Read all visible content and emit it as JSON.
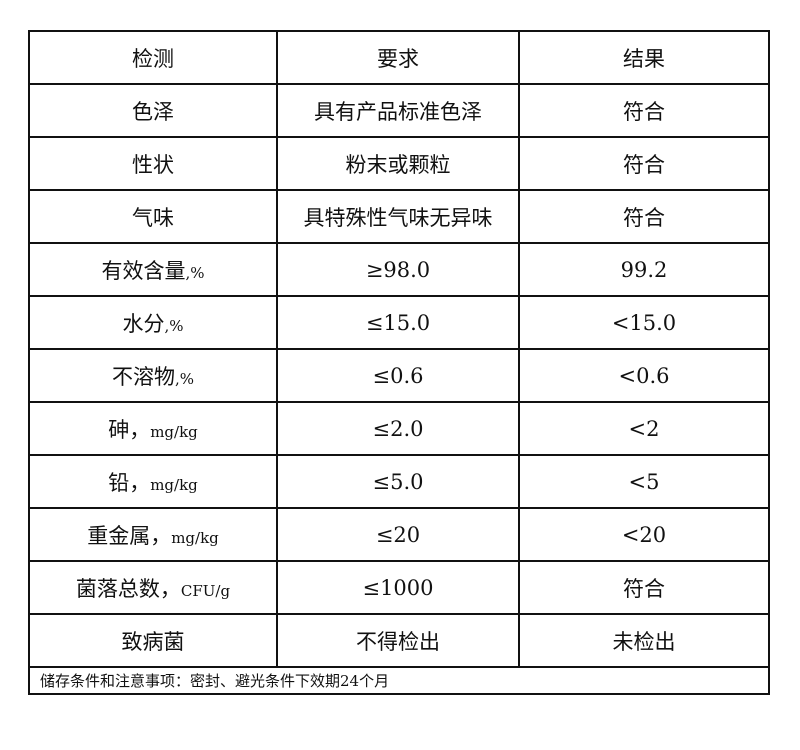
{
  "header": [
    "检测",
    "要求",
    "结果"
  ],
  "rows": [
    {
      "item": "色泽",
      "unit": "",
      "requirement": "具有产品标准色泽",
      "result": "符合"
    },
    {
      "item": "性状",
      "unit": "",
      "requirement": "粉末或颗粒",
      "result": "符合"
    },
    {
      "item": "气味",
      "unit": "",
      "requirement": "具特殊性气味无异味",
      "result": "符合"
    },
    {
      "item": "有效含量",
      "unit": ",%",
      "requirement": "≥98.0",
      "result": "99.2"
    },
    {
      "item": "水分",
      "unit": ",%",
      "requirement": "≤15.0",
      "result": "<15.0"
    },
    {
      "item": "不溶物",
      "unit": ",%",
      "requirement": "≤0.6",
      "result": "<0.6"
    },
    {
      "item": "砷，",
      "unit": "mg/kg",
      "requirement": "≤2.0",
      "result": "<2"
    },
    {
      "item": "铅，",
      "unit": "mg/kg",
      "requirement": "≤5.0",
      "result": "<5"
    },
    {
      "item": "重金属，",
      "unit": "mg/kg",
      "requirement": "≤20",
      "result": "<20"
    },
    {
      "item": "菌落总数，",
      "unit": "CFU/g",
      "requirement": "≤1000",
      "result": "符合"
    },
    {
      "item": "致病菌",
      "unit": "",
      "requirement": "不得检出",
      "result": "未检出"
    }
  ],
  "footer": "储存条件和注意事项：密封、避光条件下效期24个月"
}
